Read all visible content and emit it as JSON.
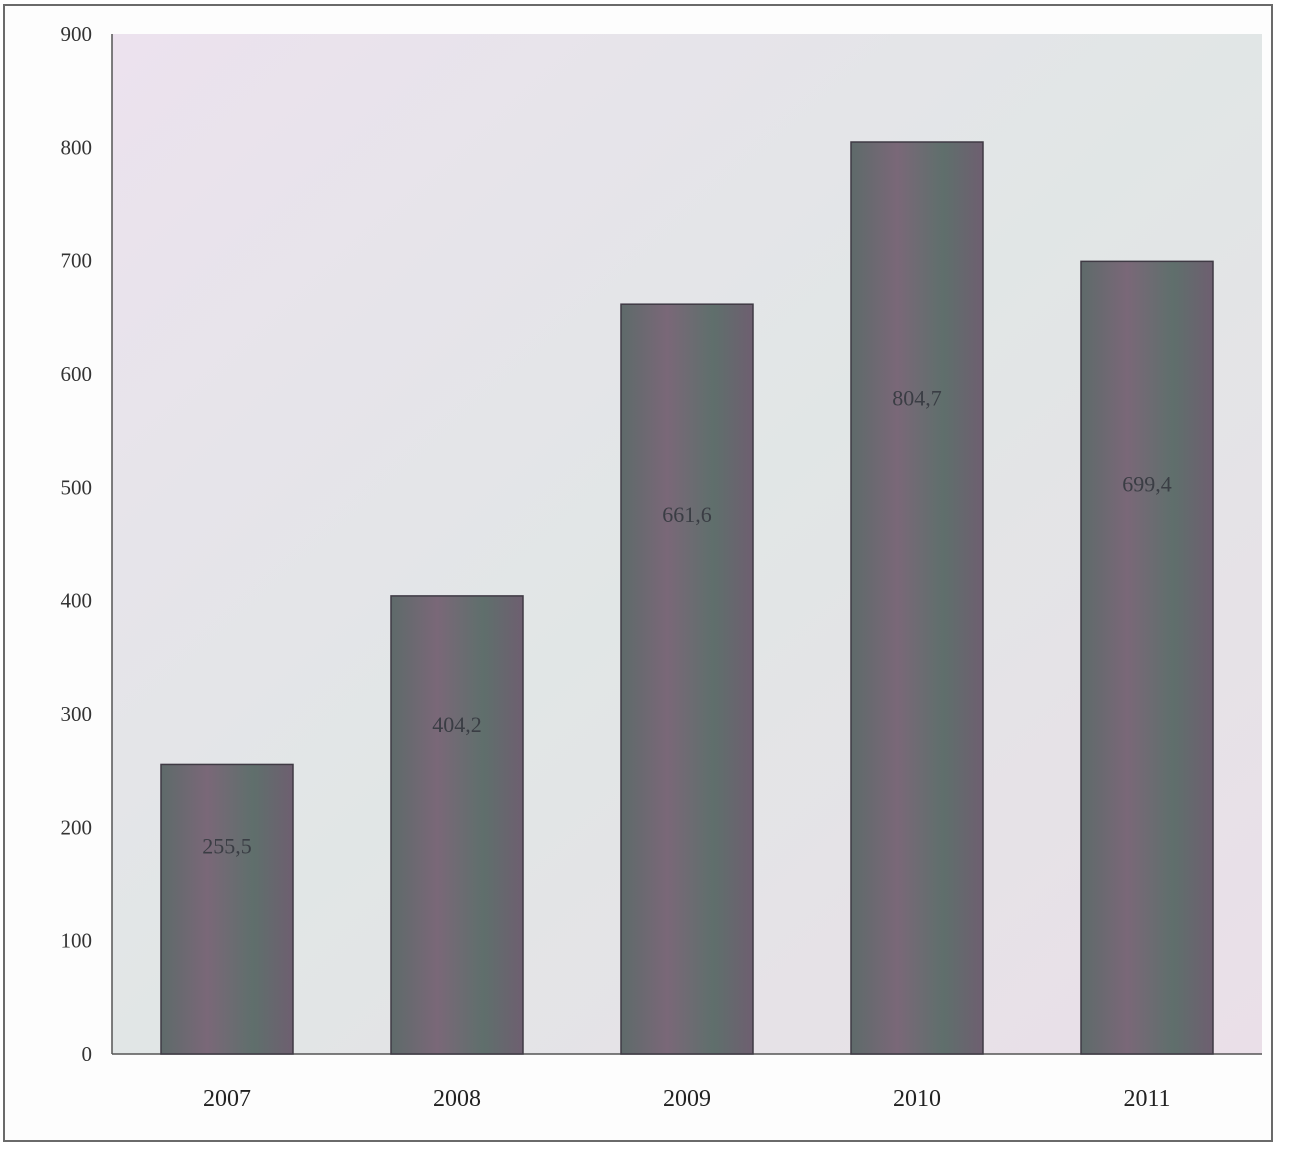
{
  "chart_data": {
    "type": "bar",
    "categories": [
      "2007",
      "2008",
      "2009",
      "2010",
      "2011"
    ],
    "values": [
      255.5,
      404.2,
      661.6,
      804.7,
      699.4
    ],
    "value_labels": [
      "255,5",
      "404,2",
      "661,6",
      "804,7",
      "699,4"
    ],
    "title": "",
    "xlabel": "",
    "ylabel": "",
    "ylim": [
      0,
      900
    ],
    "yticks": [
      "0",
      "100",
      "200",
      "300",
      "400",
      "500",
      "600",
      "700",
      "800",
      "900"
    ],
    "grid": false,
    "legend": "none",
    "colors": {
      "plot_background": "#e7ddea",
      "bar_fill": "#6b6276",
      "bar_stroke": "#3f3a44",
      "axis": "#555555"
    }
  }
}
